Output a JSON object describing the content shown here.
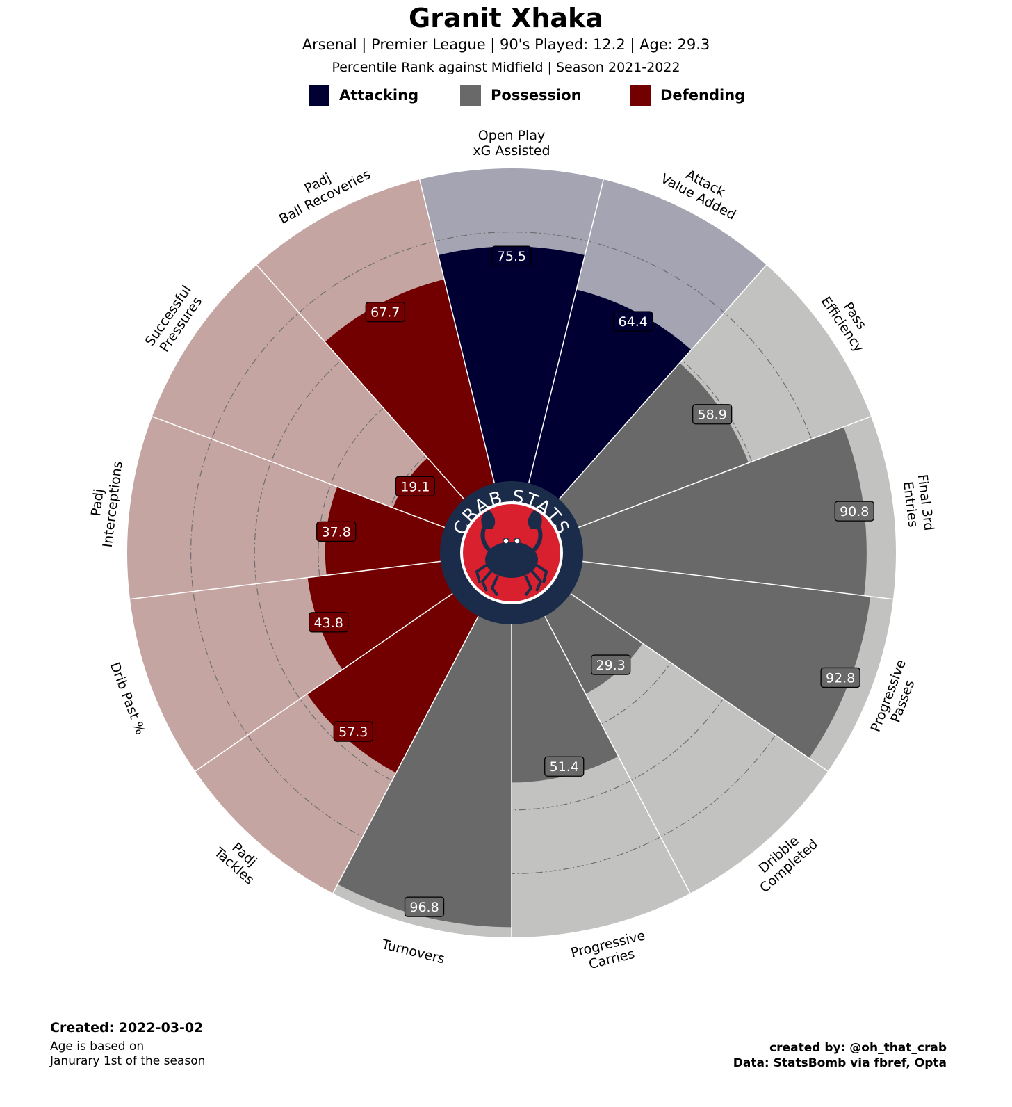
{
  "title": "Granit Xhaka",
  "subtitle_line1": "Arsenal  | Premier League | 90's Played: 12.2 | Age: 29.3",
  "subtitle_line2": "Percentile Rank against Midfield  | Season 2021-2022",
  "legend": [
    {
      "label": "Attacking",
      "color": "#000033"
    },
    {
      "label": "Possession",
      "color": "#696969"
    },
    {
      "label": "Defending",
      "color": "#730000"
    }
  ],
  "colors": {
    "attacking": "#000033",
    "attacking_bg": "#a4a4b3",
    "possession": "#696969",
    "possession_bg": "#c2c2c0",
    "defending": "#730000",
    "defending_bg": "#c4a5a2",
    "logo_ring": "#1b2c4a",
    "logo_inner": "#d9202e"
  },
  "logo_text": "CRAB STATS",
  "chart_data": {
    "type": "polar-bar",
    "rlim": [
      0,
      100
    ],
    "start": "top",
    "direction": "clockwise",
    "categories": [
      {
        "label": [
          "Open Play",
          "xG Assisted"
        ],
        "value": 75.5,
        "group": "attacking"
      },
      {
        "label": [
          "Attack",
          "Value Added"
        ],
        "value": 64.4,
        "group": "attacking"
      },
      {
        "label": [
          "Pass",
          "Efficiency"
        ],
        "value": 58.9,
        "group": "possession"
      },
      {
        "label": [
          "Final 3rd",
          "Entries"
        ],
        "value": 90.8,
        "group": "possession"
      },
      {
        "label": [
          "Progressive",
          "Passes"
        ],
        "value": 92.8,
        "group": "possession"
      },
      {
        "label": [
          "Dribble",
          "Completed"
        ],
        "value": 29.3,
        "group": "possession"
      },
      {
        "label": [
          "Progressive",
          "Carries"
        ],
        "value": 51.4,
        "group": "possession"
      },
      {
        "label": [
          "Turnovers"
        ],
        "value": 96.8,
        "group": "possession"
      },
      {
        "label": [
          "Padj",
          "Tackles"
        ],
        "value": 57.3,
        "group": "defending"
      },
      {
        "label": [
          "Drib Past %"
        ],
        "value": 43.8,
        "group": "defending"
      },
      {
        "label": [
          "Padj",
          "Interceptions"
        ],
        "value": 37.8,
        "group": "defending"
      },
      {
        "label": [
          "Successful",
          "Pressures"
        ],
        "value": 19.1,
        "group": "defending"
      },
      {
        "label": [
          "Padj",
          "Ball Recoveries"
        ],
        "value": 67.7,
        "group": "defending"
      }
    ]
  },
  "footer": {
    "created": "Created: 2022-03-02",
    "note_line1": "Age is based on",
    "note_line2": "Janurary 1st of the season",
    "credit_line1": "created by: @oh_that_crab",
    "credit_line2": "Data: StatsBomb via fbref, Opta"
  }
}
